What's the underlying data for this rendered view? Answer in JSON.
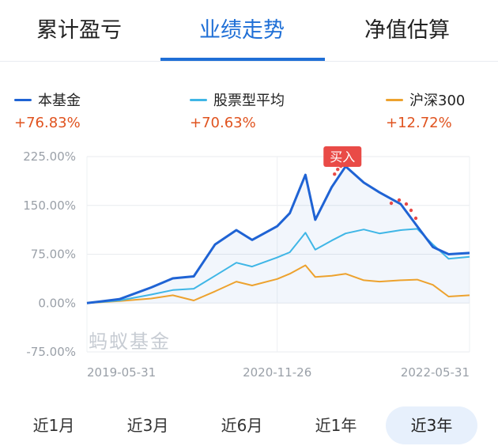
{
  "tabs": [
    {
      "label": "累计盈亏"
    },
    {
      "label": "业绩走势",
      "active": true
    },
    {
      "label": "净值估算"
    }
  ],
  "legend": [
    {
      "name": "本基金",
      "value": "+76.83%",
      "color": "#1f63d4"
    },
    {
      "name": "股票型平均",
      "value": "+70.63%",
      "color": "#3fb6e6"
    },
    {
      "name": "沪深300",
      "value": "+12.72%",
      "color": "#eda22e"
    }
  ],
  "chart_data": {
    "type": "line",
    "y_ticks": [
      "225.00%",
      "150.00%",
      "75.00%",
      "0.00%",
      "-75.00%"
    ],
    "ylim": [
      -75,
      225
    ],
    "x_ticks": [
      "2019-05-31",
      "2020-11-26",
      "2022-05-31"
    ],
    "xlim": [
      "2019-05-31",
      "2022-05-31"
    ],
    "grid": true,
    "legend_position": "top",
    "watermark": "蚂蚁基金",
    "buy_marker": {
      "label": "买入",
      "date": "2021-06-01"
    },
    "series": [
      {
        "name": "本基金",
        "color": "#1f63d4",
        "points": [
          [
            "2019-05-31",
            0
          ],
          [
            "2019-09-01",
            6
          ],
          [
            "2019-12-01",
            24
          ],
          [
            "2020-02-01",
            38
          ],
          [
            "2020-04-01",
            41
          ],
          [
            "2020-06-01",
            90
          ],
          [
            "2020-08-01",
            112
          ],
          [
            "2020-09-15",
            97
          ],
          [
            "2020-11-26",
            118
          ],
          [
            "2021-01-01",
            138
          ],
          [
            "2021-02-15",
            197
          ],
          [
            "2021-03-15",
            128
          ],
          [
            "2021-05-01",
            178
          ],
          [
            "2021-06-10",
            210
          ],
          [
            "2021-08-01",
            185
          ],
          [
            "2021-09-15",
            170
          ],
          [
            "2021-11-15",
            152
          ],
          [
            "2022-01-01",
            118
          ],
          [
            "2022-02-15",
            86
          ],
          [
            "2022-04-01",
            75
          ],
          [
            "2022-05-31",
            77
          ]
        ]
      },
      {
        "name": "股票型平均",
        "color": "#3fb6e6",
        "points": [
          [
            "2019-05-31",
            0
          ],
          [
            "2019-09-01",
            4
          ],
          [
            "2019-12-01",
            13
          ],
          [
            "2020-02-01",
            20
          ],
          [
            "2020-04-01",
            22
          ],
          [
            "2020-06-01",
            42
          ],
          [
            "2020-08-01",
            62
          ],
          [
            "2020-09-15",
            56
          ],
          [
            "2020-11-26",
            70
          ],
          [
            "2021-01-01",
            78
          ],
          [
            "2021-02-15",
            108
          ],
          [
            "2021-03-15",
            82
          ],
          [
            "2021-05-01",
            96
          ],
          [
            "2021-06-10",
            107
          ],
          [
            "2021-08-01",
            113
          ],
          [
            "2021-09-15",
            107
          ],
          [
            "2021-11-15",
            112
          ],
          [
            "2022-01-01",
            114
          ],
          [
            "2022-02-15",
            90
          ],
          [
            "2022-04-01",
            68
          ],
          [
            "2022-05-31",
            71
          ]
        ]
      },
      {
        "name": "沪深300",
        "color": "#eda22e",
        "points": [
          [
            "2019-05-31",
            0
          ],
          [
            "2019-09-01",
            3
          ],
          [
            "2019-12-01",
            7
          ],
          [
            "2020-02-01",
            12
          ],
          [
            "2020-04-01",
            4
          ],
          [
            "2020-06-01",
            18
          ],
          [
            "2020-08-01",
            33
          ],
          [
            "2020-09-15",
            27
          ],
          [
            "2020-11-26",
            37
          ],
          [
            "2021-01-01",
            45
          ],
          [
            "2021-02-15",
            58
          ],
          [
            "2021-03-15",
            40
          ],
          [
            "2021-05-01",
            42
          ],
          [
            "2021-06-10",
            45
          ],
          [
            "2021-08-01",
            35
          ],
          [
            "2021-09-15",
            33
          ],
          [
            "2021-11-15",
            35
          ],
          [
            "2022-01-01",
            36
          ],
          [
            "2022-02-15",
            28
          ],
          [
            "2022-04-01",
            10
          ],
          [
            "2022-05-31",
            12
          ]
        ]
      }
    ]
  },
  "periods": [
    {
      "label": "近1月"
    },
    {
      "label": "近3月"
    },
    {
      "label": "近6月"
    },
    {
      "label": "近1年"
    },
    {
      "label": "近3年",
      "active": true
    }
  ]
}
